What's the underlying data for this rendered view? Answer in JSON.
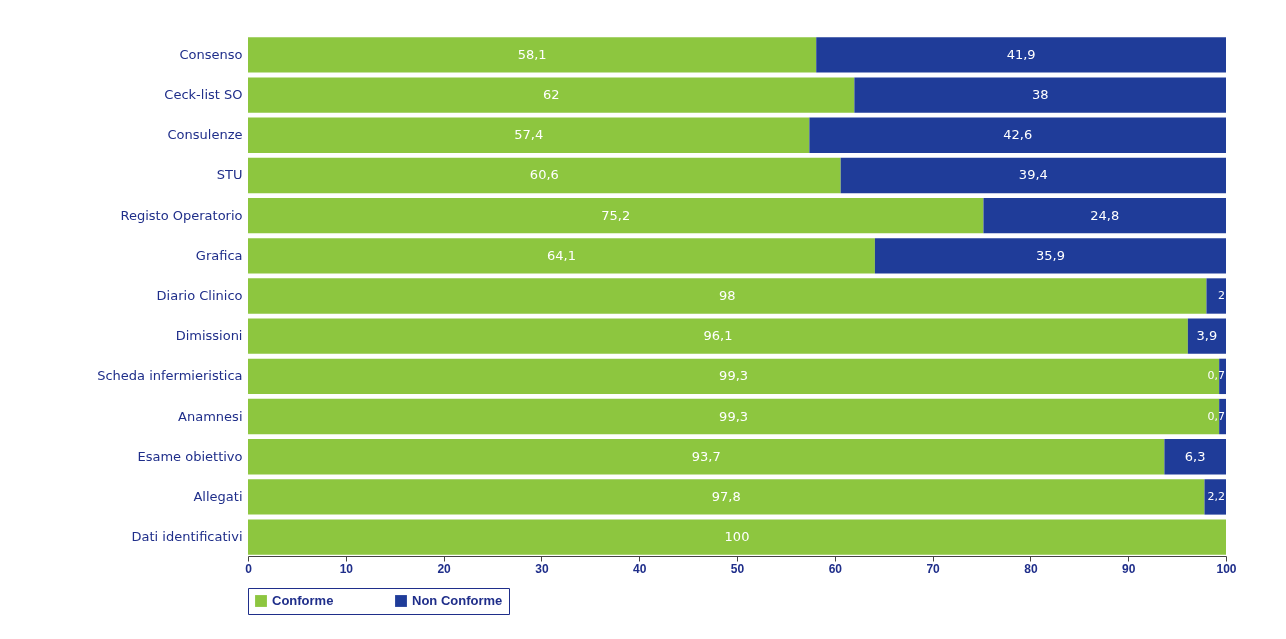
{
  "chart_data": {
    "type": "bar",
    "orientation": "horizontal",
    "stacked": true,
    "legend": "bottom",
    "grid": false,
    "categories": [
      "Consenso",
      "Ceck-list SO",
      "Consulenze",
      "STU",
      "Registo Operatorio",
      "Grafica",
      "Diario Clinico",
      "Dimissioni",
      "Scheda infermieristica",
      "Anamnesi",
      "Esame obiettivo",
      "Allegati",
      "Dati identificativi"
    ],
    "series": [
      {
        "name": "Conforme",
        "color": "#8dc63f",
        "values": [
          58.1,
          62,
          57.4,
          60.6,
          75.2,
          64.1,
          98,
          96.1,
          99.3,
          99.3,
          93.7,
          97.8,
          100
        ],
        "value_labels": [
          "58,1",
          "62",
          "57,4",
          "60,6",
          "75,2",
          "64,1",
          "98",
          "96,1",
          "99,3",
          "99,3",
          "93,7",
          "97,8",
          "100"
        ]
      },
      {
        "name": "Non Conforme",
        "color": "#1f3c99",
        "values": [
          41.9,
          38,
          42.6,
          39.4,
          24.8,
          35.9,
          2,
          3.9,
          0.7,
          0.7,
          6.3,
          2.2,
          null
        ],
        "value_labels": [
          "41,9",
          "38",
          "42,6",
          "39,4",
          "24,8",
          "35,9",
          "2",
          "3,9",
          "0,7",
          "0,7",
          "6,3",
          "2,2",
          null
        ]
      }
    ],
    "xlim": [
      0,
      100
    ],
    "xticks": [
      0,
      10,
      20,
      30,
      40,
      50,
      60,
      70,
      80,
      90,
      100
    ]
  }
}
